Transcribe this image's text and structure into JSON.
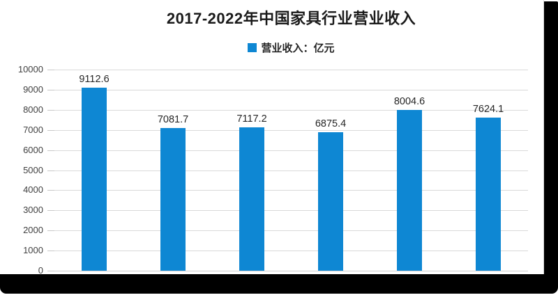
{
  "header": {
    "title": "2017-2022年中国家具行业营业收入"
  },
  "legend": {
    "label": "营业收入：亿元",
    "swatch_color": "#0e87d3"
  },
  "colors": {
    "bar": "#0e87d3",
    "gridline": "#d9d9d9",
    "axis_text": "#3f3f3f",
    "value_text": "#262626",
    "frame": "#000000"
  },
  "chart_data": {
    "type": "bar",
    "title": "2017-2022年中国家具行业营业收入",
    "legend_entries": [
      "营业收入：亿元"
    ],
    "legend_position": "top-center",
    "categories": [
      "",
      "",
      "",
      "",
      "",
      ""
    ],
    "values": [
      9112.6,
      7081.7,
      7117.2,
      6875.4,
      8004.6,
      7624.1
    ],
    "value_labels": [
      "9112.6",
      "7081.7",
      "7117.2",
      "6875.4",
      "8004.6",
      "7624.1"
    ],
    "ylim": [
      0,
      10000
    ],
    "yticks": [
      0,
      1000,
      2000,
      3000,
      4000,
      5000,
      6000,
      7000,
      8000,
      9000,
      10000
    ],
    "grid": true,
    "x_axis_labels_visible": false
  }
}
